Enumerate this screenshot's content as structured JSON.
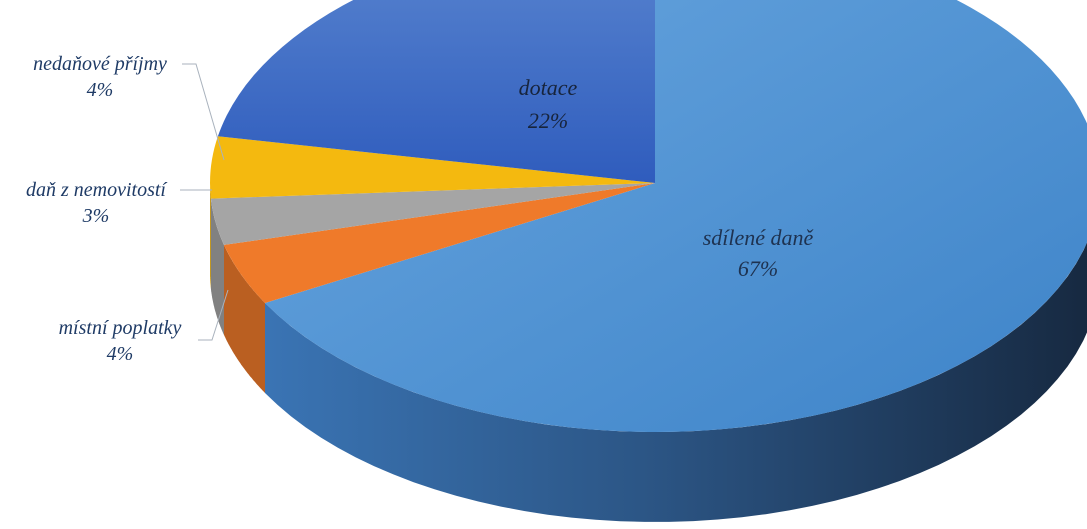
{
  "chart_data": {
    "type": "pie",
    "title": "",
    "slices": [
      {
        "name": "sdílené daně",
        "value": 67,
        "label": "67%",
        "color": "#4a8fd2"
      },
      {
        "name": "místní poplatky",
        "value": 4,
        "label": "4%",
        "color": "#ef7a2a"
      },
      {
        "name": "daň z nemovitostí",
        "value": 3,
        "label": "3%",
        "color": "#a5a5a5"
      },
      {
        "name": "nedaňové příjmy",
        "value": 4,
        "label": "4%",
        "color": "#f4b90f"
      },
      {
        "name": "dotace",
        "value": 22,
        "label": "22%",
        "color": "#3a66c4"
      }
    ],
    "legend": "none",
    "three_d": true
  }
}
